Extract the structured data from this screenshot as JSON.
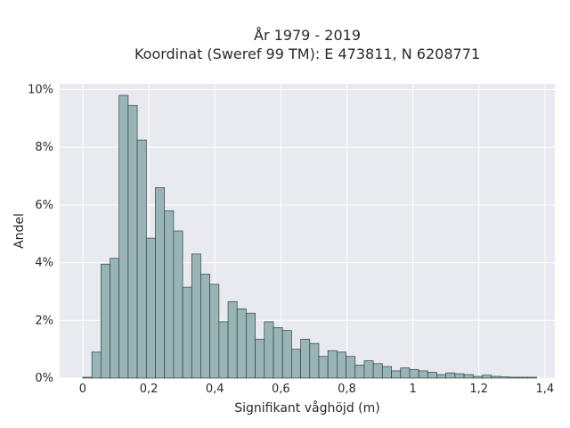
{
  "chart_data": {
    "type": "bar",
    "title_lines": [
      "År 1979 - 2019",
      "Koordinat (Sweref 99 TM): E 473811, N 6208771"
    ],
    "xlabel": "Signifikant våghöjd (m)",
    "ylabel": "Andel",
    "xlim": [
      -0.07,
      1.43
    ],
    "ylim": [
      0,
      10.2
    ],
    "x_ticks": [
      0,
      0.2,
      0.4,
      0.6,
      0.8,
      1,
      1.2,
      1.4
    ],
    "x_tick_labels": [
      "0",
      "0,2",
      "0,4",
      "0,6",
      "0,8",
      "1",
      "1,2",
      "1,4"
    ],
    "y_ticks": [
      0,
      2,
      4,
      6,
      8,
      10
    ],
    "y_tick_labels": [
      "0%",
      "2%",
      "4%",
      "6%",
      "8%",
      "10%"
    ],
    "bin_width": 0.0275,
    "bin_start": 0,
    "values": [
      0.03,
      0.9,
      3.95,
      4.15,
      9.8,
      9.45,
      8.25,
      4.85,
      6.6,
      5.8,
      5.1,
      3.15,
      4.3,
      3.6,
      3.25,
      1.95,
      2.65,
      2.4,
      2.25,
      1.35,
      1.95,
      1.75,
      1.65,
      1.0,
      1.35,
      1.2,
      0.75,
      0.95,
      0.9,
      0.75,
      0.45,
      0.6,
      0.5,
      0.4,
      0.25,
      0.35,
      0.3,
      0.25,
      0.2,
      0.12,
      0.18,
      0.15,
      0.12,
      0.06,
      0.1,
      0.06,
      0.04,
      0.03,
      0.03,
      0.03
    ],
    "grid": true,
    "colors": {
      "bar_fill": "#98b4b4",
      "bar_edge": "#2f4444",
      "plot_bg": "#e9e9f0",
      "grid": "#ffffff"
    }
  }
}
